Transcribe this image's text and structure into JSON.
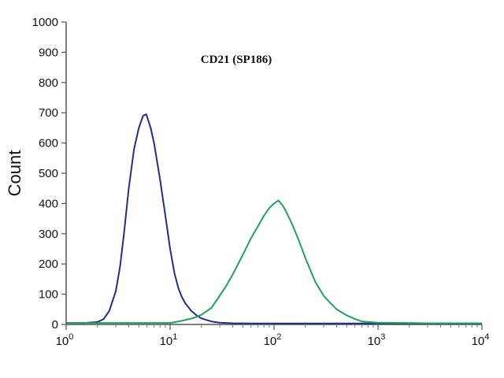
{
  "chart_data": {
    "type": "line",
    "title": "CD21 (SP186)",
    "xlabel": "",
    "ylabel": "Count",
    "x_scale": "log",
    "xlim": [
      1,
      10000
    ],
    "ylim": [
      0,
      1000
    ],
    "y_ticks": [
      "0",
      "100",
      "200",
      "300",
      "400",
      "500",
      "600",
      "700",
      "800",
      "900",
      "1000"
    ],
    "x_ticks": [
      {
        "base": "10",
        "exp": "0"
      },
      {
        "base": "10",
        "exp": "1"
      },
      {
        "base": "10",
        "exp": "2"
      },
      {
        "base": "10",
        "exp": "3"
      },
      {
        "base": "10",
        "exp": "4"
      }
    ],
    "grid": false,
    "legend": "none",
    "series": [
      {
        "color": "#1f2f8f",
        "x": [
          1,
          1.5,
          2,
          2.3,
          2.6,
          3,
          3.3,
          3.6,
          4,
          4.5,
          5,
          5.5,
          5.9,
          6.5,
          7,
          8,
          9,
          10,
          11,
          12,
          13,
          14,
          16,
          18,
          20,
          25,
          30,
          40,
          60,
          100,
          1000,
          10000
        ],
        "y": [
          5,
          5,
          8,
          18,
          45,
          110,
          190,
          300,
          450,
          580,
          650,
          690,
          695,
          650,
          600,
          480,
          360,
          250,
          170,
          120,
          90,
          70,
          45,
          30,
          20,
          10,
          6,
          4,
          3,
          3,
          3,
          3
        ]
      },
      {
        "color": "#1aa557",
        "x": [
          1,
          5,
          10,
          13,
          17,
          20,
          25,
          30,
          35,
          40,
          50,
          60,
          70,
          80,
          90,
          100,
          110,
          120,
          130,
          150,
          170,
          200,
          250,
          300,
          350,
          400,
          500,
          600,
          700,
          1000,
          3000,
          10000
        ],
        "y": [
          5,
          5,
          5,
          12,
          22,
          32,
          55,
          95,
          130,
          165,
          230,
          285,
          325,
          360,
          385,
          400,
          410,
          395,
          375,
          330,
          285,
          220,
          140,
          95,
          70,
          50,
          30,
          18,
          10,
          6,
          4,
          4
        ]
      }
    ]
  }
}
